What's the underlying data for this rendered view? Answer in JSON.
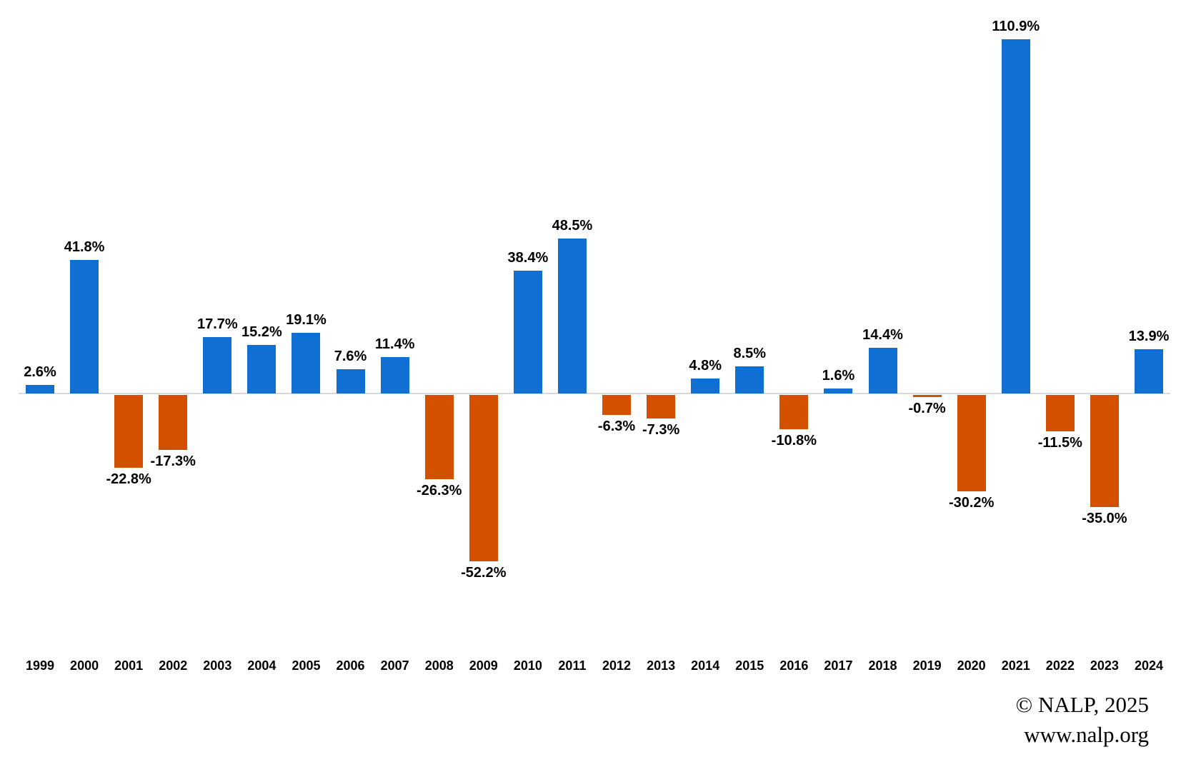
{
  "chart_data": {
    "type": "bar",
    "title": "",
    "xlabel": "",
    "ylabel": "",
    "categories": [
      "1999",
      "2000",
      "2001",
      "2002",
      "2003",
      "2004",
      "2005",
      "2006",
      "2007",
      "2008",
      "2009",
      "2010",
      "2011",
      "2012",
      "2013",
      "2014",
      "2015",
      "2016",
      "2017",
      "2018",
      "2019",
      "2020",
      "2021",
      "2022",
      "2023",
      "2024"
    ],
    "values": [
      2.6,
      41.8,
      -22.8,
      -17.3,
      17.7,
      15.2,
      19.1,
      7.6,
      11.4,
      -26.3,
      -52.2,
      38.4,
      48.5,
      -6.3,
      -7.3,
      4.8,
      8.5,
      -10.8,
      1.6,
      14.4,
      -0.7,
      -30.2,
      110.9,
      -11.5,
      -35.0,
      13.9
    ],
    "data_labels": [
      "2.6%",
      "41.8%",
      "-22.8%",
      "-17.3%",
      "17.7%",
      "15.2%",
      "19.1%",
      "7.6%",
      "11.4%",
      "-26.3%",
      "-52.2%",
      "38.4%",
      "48.5%",
      "-6.3%",
      "-7.3%",
      "4.8%",
      "8.5%",
      "-10.8%",
      "1.6%",
      "14.4%",
      "-0.7%",
      "-30.2%",
      "110.9%",
      "-11.5%",
      "-35.0%",
      "13.9%"
    ],
    "ylim": [
      -60,
      120
    ],
    "grid": false,
    "legend_position": "none",
    "colors": {
      "positive_bar": "#0f6fd2",
      "negative_bar": "#d35000",
      "axis_line": "#d9d9d9",
      "label_text": "#000000"
    }
  },
  "attribution": {
    "line1": "© NALP, 2025",
    "line2": "www.nalp.org"
  }
}
